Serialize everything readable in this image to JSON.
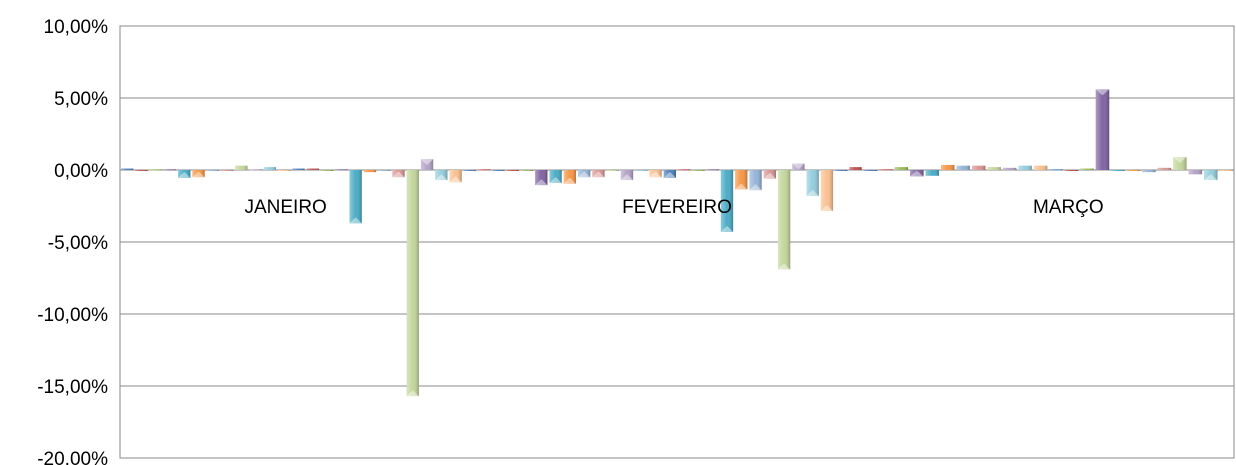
{
  "chart_data": {
    "type": "bar",
    "title": "",
    "xlabel": "",
    "ylabel": "",
    "ylim": [
      -20,
      10
    ],
    "yticks": [
      10,
      5,
      0,
      -5,
      -10,
      -15,
      -20
    ],
    "ytick_labels": [
      "10,00%",
      "5,00%",
      "0,00%",
      "-5,00%",
      "-10,00%",
      "-15,00%",
      "-20,00%"
    ],
    "grid": true,
    "legend": "none",
    "categories": [
      "JANEIRO",
      "FEVEREIRO",
      "MARÇO"
    ],
    "palette": [
      "#4f81bd",
      "#c0504d",
      "#9bbb59",
      "#8064a2",
      "#4bacc6",
      "#f79646",
      "#95b3d7",
      "#d99694",
      "#c3d69b",
      "#b3a2c7",
      "#93cddd",
      "#fac090"
    ],
    "groups": [
      {
        "category": "JANEIRO",
        "values": [
          0.1,
          0.0,
          0.05,
          0.05,
          -0.55,
          -0.5,
          0.0,
          0.0,
          0.3,
          0.05,
          0.2,
          0.0,
          0.1,
          0.1,
          0.0,
          0.05,
          -3.7,
          -0.15,
          -0.05,
          -0.5,
          -15.7,
          0.75,
          -0.7,
          -0.85,
          0.0,
          0.05
        ]
      },
      {
        "category": "FEVEREIRO",
        "values": [
          0.0,
          0.0,
          0.0,
          -1.05,
          -0.9,
          -0.95,
          -0.5,
          -0.5,
          0.0,
          -0.7,
          0.0,
          -0.5,
          -0.55,
          0.05,
          0.0,
          0.05,
          -4.3,
          -1.35,
          -1.4,
          -0.6,
          -6.9,
          0.45,
          -1.8,
          -2.85,
          0.0,
          0.2
        ]
      },
      {
        "category": "MARÇO",
        "values": [
          0.0,
          0.05,
          0.2,
          -0.45,
          -0.4,
          0.35,
          0.3,
          0.3,
          0.2,
          0.15,
          0.3,
          0.3,
          0.05,
          0.0,
          0.1,
          5.6,
          0.0,
          0.0,
          -0.15,
          0.15,
          0.9,
          -0.3,
          -0.7,
          -0.05
        ]
      }
    ]
  }
}
